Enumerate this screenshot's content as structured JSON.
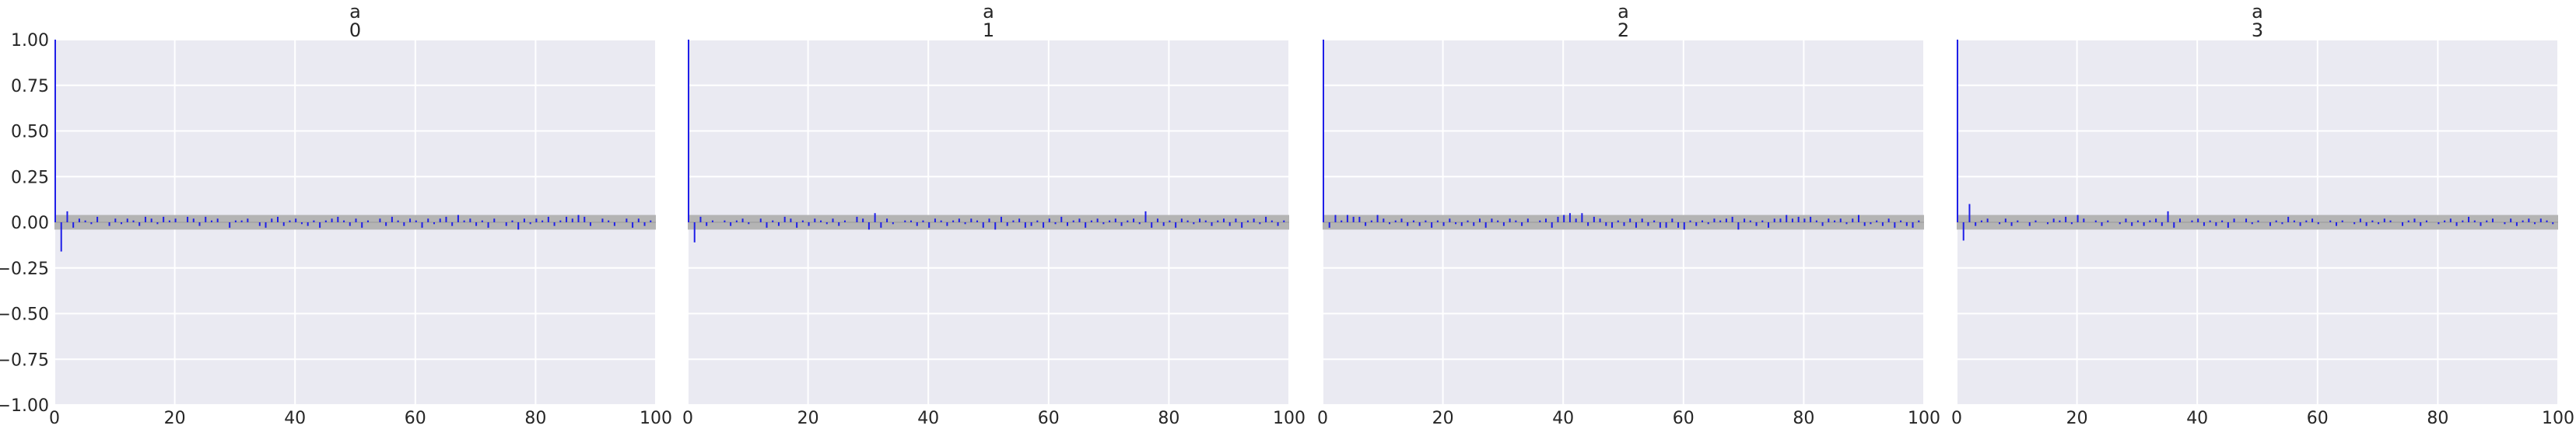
{
  "colors": {
    "panel_bg": "#eaeaf2",
    "grid": "#ffffff",
    "band": "#b4b4b4",
    "bar": "#1f1fe8"
  },
  "chart_data": [
    {
      "type": "bar",
      "subtype": "autocorrelation",
      "title": [
        "a",
        "0"
      ],
      "xlim": [
        0,
        100
      ],
      "ylim": [
        -1.0,
        1.0
      ],
      "xticks": [
        "0",
        "20",
        "40",
        "60",
        "80",
        "100"
      ],
      "yticks": [
        "1.00",
        "0.75",
        "0.50",
        "0.25",
        "0.00",
        "−0.25",
        "−0.50",
        "−0.75",
        "−1.00"
      ],
      "grid": true,
      "band": 0.04,
      "lags": [
        0,
        1,
        2,
        3,
        4,
        5,
        6,
        7,
        8,
        9,
        10,
        11,
        12,
        13,
        14,
        15,
        16,
        17,
        18,
        19,
        20,
        21,
        22,
        23,
        24,
        25,
        26,
        27,
        28,
        29,
        30,
        31,
        32,
        33,
        34,
        35,
        36,
        37,
        38,
        39,
        40,
        41,
        42,
        43,
        44,
        45,
        46,
        47,
        48,
        49,
        50,
        51,
        52,
        53,
        54,
        55,
        56,
        57,
        58,
        59,
        60,
        61,
        62,
        63,
        64,
        65,
        66,
        67,
        68,
        69,
        70,
        71,
        72,
        73,
        74,
        75,
        76,
        77,
        78,
        79,
        80,
        81,
        82,
        83,
        84,
        85,
        86,
        87,
        88,
        89,
        90,
        91,
        92,
        93,
        94,
        95,
        96,
        97,
        98,
        99
      ],
      "values": [
        1.0,
        -0.16,
        0.06,
        -0.03,
        0.02,
        0.01,
        -0.01,
        0.03,
        0.0,
        -0.02,
        0.02,
        -0.01,
        0.02,
        0.01,
        -0.02,
        0.03,
        0.02,
        -0.01,
        0.03,
        0.01,
        0.02,
        0.0,
        0.03,
        0.02,
        -0.02,
        0.03,
        0.01,
        0.02,
        0.0,
        -0.03,
        0.01,
        0.01,
        0.02,
        0.0,
        -0.02,
        -0.03,
        0.02,
        0.03,
        -0.02,
        0.01,
        0.02,
        -0.01,
        -0.02,
        0.01,
        -0.03,
        0.01,
        0.02,
        0.03,
        0.01,
        -0.02,
        0.02,
        -0.03,
        0.01,
        0.0,
        0.02,
        -0.02,
        0.03,
        0.01,
        -0.02,
        0.02,
        0.01,
        -0.03,
        0.02,
        -0.01,
        0.02,
        0.03,
        -0.02,
        0.04,
        0.01,
        0.02,
        -0.02,
        0.01,
        -0.03,
        0.02,
        0.0,
        -0.02,
        0.01,
        -0.04,
        0.02,
        -0.01,
        0.02,
        0.01,
        0.03,
        -0.02,
        0.01,
        0.03,
        0.02,
        0.04,
        0.03,
        -0.02,
        0.0,
        0.02,
        0.01,
        -0.02,
        0.0,
        0.02,
        -0.03,
        0.02,
        -0.02,
        0.01
      ]
    },
    {
      "type": "bar",
      "subtype": "autocorrelation",
      "title": [
        "a",
        "1"
      ],
      "xlim": [
        0,
        100
      ],
      "ylim": [
        -1.0,
        1.0
      ],
      "xticks": [
        "0",
        "20",
        "40",
        "60",
        "80",
        "100"
      ],
      "yticks": [],
      "grid": true,
      "band": 0.04,
      "lags": [
        0,
        1,
        2,
        3,
        4,
        5,
        6,
        7,
        8,
        9,
        10,
        11,
        12,
        13,
        14,
        15,
        16,
        17,
        18,
        19,
        20,
        21,
        22,
        23,
        24,
        25,
        26,
        27,
        28,
        29,
        30,
        31,
        32,
        33,
        34,
        35,
        36,
        37,
        38,
        39,
        40,
        41,
        42,
        43,
        44,
        45,
        46,
        47,
        48,
        49,
        50,
        51,
        52,
        53,
        54,
        55,
        56,
        57,
        58,
        59,
        60,
        61,
        62,
        63,
        64,
        65,
        66,
        67,
        68,
        69,
        70,
        71,
        72,
        73,
        74,
        75,
        76,
        77,
        78,
        79,
        80,
        81,
        82,
        83,
        84,
        85,
        86,
        87,
        88,
        89,
        90,
        91,
        92,
        93,
        94,
        95,
        96,
        97,
        98,
        99
      ],
      "values": [
        1.0,
        -0.11,
        0.03,
        -0.02,
        0.01,
        0.0,
        0.01,
        -0.02,
        0.01,
        0.02,
        -0.01,
        0.0,
        0.02,
        -0.03,
        0.01,
        -0.02,
        0.03,
        0.02,
        -0.03,
        0.01,
        -0.02,
        0.02,
        0.01,
        -0.01,
        0.02,
        -0.02,
        0.01,
        0.0,
        0.03,
        0.02,
        -0.04,
        0.05,
        -0.03,
        0.02,
        -0.01,
        0.0,
        0.01,
        0.01,
        -0.02,
        0.01,
        -0.03,
        0.02,
        0.01,
        -0.02,
        0.01,
        0.02,
        -0.01,
        0.02,
        0.01,
        -0.03,
        0.02,
        -0.04,
        0.03,
        -0.02,
        0.01,
        0.02,
        -0.03,
        -0.02,
        0.01,
        -0.03,
        0.02,
        -0.01,
        0.03,
        -0.02,
        0.01,
        0.02,
        -0.03,
        0.01,
        0.02,
        -0.01,
        0.01,
        0.02,
        -0.02,
        0.01,
        0.02,
        -0.01,
        0.06,
        -0.03,
        0.02,
        -0.02,
        0.01,
        -0.03,
        0.02,
        0.01,
        -0.01,
        0.02,
        0.01,
        -0.02,
        0.01,
        0.02,
        -0.02,
        0.02,
        -0.03,
        0.01,
        0.02,
        -0.01,
        0.03,
        0.01,
        -0.02,
        0.01
      ]
    },
    {
      "type": "bar",
      "subtype": "autocorrelation",
      "title": [
        "a",
        "2"
      ],
      "xlim": [
        0,
        100
      ],
      "ylim": [
        -1.0,
        1.0
      ],
      "xticks": [
        "0",
        "20",
        "40",
        "60",
        "80",
        "100"
      ],
      "yticks": [],
      "grid": true,
      "band": 0.04,
      "lags": [
        0,
        1,
        2,
        3,
        4,
        5,
        6,
        7,
        8,
        9,
        10,
        11,
        12,
        13,
        14,
        15,
        16,
        17,
        18,
        19,
        20,
        21,
        22,
        23,
        24,
        25,
        26,
        27,
        28,
        29,
        30,
        31,
        32,
        33,
        34,
        35,
        36,
        37,
        38,
        39,
        40,
        41,
        42,
        43,
        44,
        45,
        46,
        47,
        48,
        49,
        50,
        51,
        52,
        53,
        54,
        55,
        56,
        57,
        58,
        59,
        60,
        61,
        62,
        63,
        64,
        65,
        66,
        67,
        68,
        69,
        70,
        71,
        72,
        73,
        74,
        75,
        76,
        77,
        78,
        79,
        80,
        81,
        82,
        83,
        84,
        85,
        86,
        87,
        88,
        89,
        90,
        91,
        92,
        93,
        94,
        95,
        96,
        97,
        98,
        99
      ],
      "values": [
        1.0,
        -0.03,
        0.04,
        0.01,
        0.04,
        0.03,
        0.03,
        -0.02,
        0.01,
        0.04,
        0.02,
        -0.01,
        0.01,
        0.02,
        -0.02,
        0.01,
        -0.02,
        0.01,
        -0.03,
        0.01,
        -0.02,
        0.02,
        -0.01,
        -0.02,
        0.01,
        -0.02,
        0.02,
        -0.03,
        0.02,
        0.01,
        -0.02,
        0.02,
        0.01,
        -0.02,
        0.02,
        0.0,
        0.01,
        0.02,
        -0.03,
        0.03,
        0.04,
        0.05,
        0.02,
        0.05,
        -0.02,
        0.03,
        0.02,
        -0.02,
        -0.03,
        0.01,
        -0.02,
        0.02,
        -0.03,
        0.02,
        -0.02,
        0.01,
        -0.03,
        -0.03,
        0.02,
        -0.03,
        -0.04,
        0.01,
        -0.02,
        0.01,
        -0.01,
        0.02,
        0.01,
        0.02,
        0.03,
        -0.04,
        0.02,
        0.01,
        -0.02,
        0.01,
        -0.03,
        0.02,
        0.02,
        0.04,
        0.02,
        0.03,
        0.02,
        0.03,
        0.01,
        -0.02,
        0.02,
        0.01,
        0.02,
        -0.01,
        0.02,
        0.04,
        -0.02,
        -0.01,
        0.01,
        -0.02,
        0.02,
        -0.03,
        0.01,
        -0.02,
        -0.03,
        0.01
      ]
    },
    {
      "type": "bar",
      "subtype": "autocorrelation",
      "title": [
        "a",
        "3"
      ],
      "xlim": [
        0,
        100
      ],
      "ylim": [
        -1.0,
        1.0
      ],
      "xticks": [
        "0",
        "20",
        "40",
        "60",
        "80",
        "100"
      ],
      "yticks": [],
      "grid": true,
      "band": 0.04,
      "lags": [
        0,
        1,
        2,
        3,
        4,
        5,
        6,
        7,
        8,
        9,
        10,
        11,
        12,
        13,
        14,
        15,
        16,
        17,
        18,
        19,
        20,
        21,
        22,
        23,
        24,
        25,
        26,
        27,
        28,
        29,
        30,
        31,
        32,
        33,
        34,
        35,
        36,
        37,
        38,
        39,
        40,
        41,
        42,
        43,
        44,
        45,
        46,
        47,
        48,
        49,
        50,
        51,
        52,
        53,
        54,
        55,
        56,
        57,
        58,
        59,
        60,
        61,
        62,
        63,
        64,
        65,
        66,
        67,
        68,
        69,
        70,
        71,
        72,
        73,
        74,
        75,
        76,
        77,
        78,
        79,
        80,
        81,
        82,
        83,
        84,
        85,
        86,
        87,
        88,
        89,
        90,
        91,
        92,
        93,
        94,
        95,
        96,
        97,
        98,
        99
      ],
      "values": [
        1.0,
        -0.1,
        0.1,
        -0.02,
        0.01,
        0.02,
        0.0,
        -0.01,
        0.02,
        -0.02,
        0.01,
        0.0,
        -0.02,
        0.01,
        0.0,
        -0.01,
        0.02,
        0.01,
        0.03,
        -0.01,
        0.04,
        0.02,
        0.0,
        0.01,
        -0.02,
        0.01,
        0.0,
        -0.01,
        0.02,
        -0.02,
        0.01,
        -0.02,
        0.01,
        0.02,
        -0.02,
        0.06,
        -0.03,
        0.02,
        0.0,
        0.01,
        0.02,
        -0.02,
        0.01,
        -0.02,
        0.01,
        -0.03,
        0.02,
        0.0,
        0.02,
        -0.01,
        0.01,
        0.0,
        -0.02,
        0.01,
        -0.01,
        0.03,
        0.01,
        -0.02,
        0.01,
        0.02,
        -0.01,
        0.0,
        0.01,
        -0.02,
        0.01,
        0.0,
        -0.01,
        0.02,
        -0.02,
        0.01,
        -0.01,
        0.02,
        0.01,
        0.0,
        -0.02,
        0.01,
        0.02,
        -0.02,
        0.01,
        0.0,
        -0.01,
        0.01,
        0.02,
        -0.02,
        0.01,
        0.03,
        0.01,
        -0.02,
        0.01,
        0.02,
        0.0,
        -0.01,
        0.02,
        -0.02,
        0.01,
        0.02,
        -0.01,
        0.02,
        0.01,
        -0.01
      ]
    }
  ]
}
